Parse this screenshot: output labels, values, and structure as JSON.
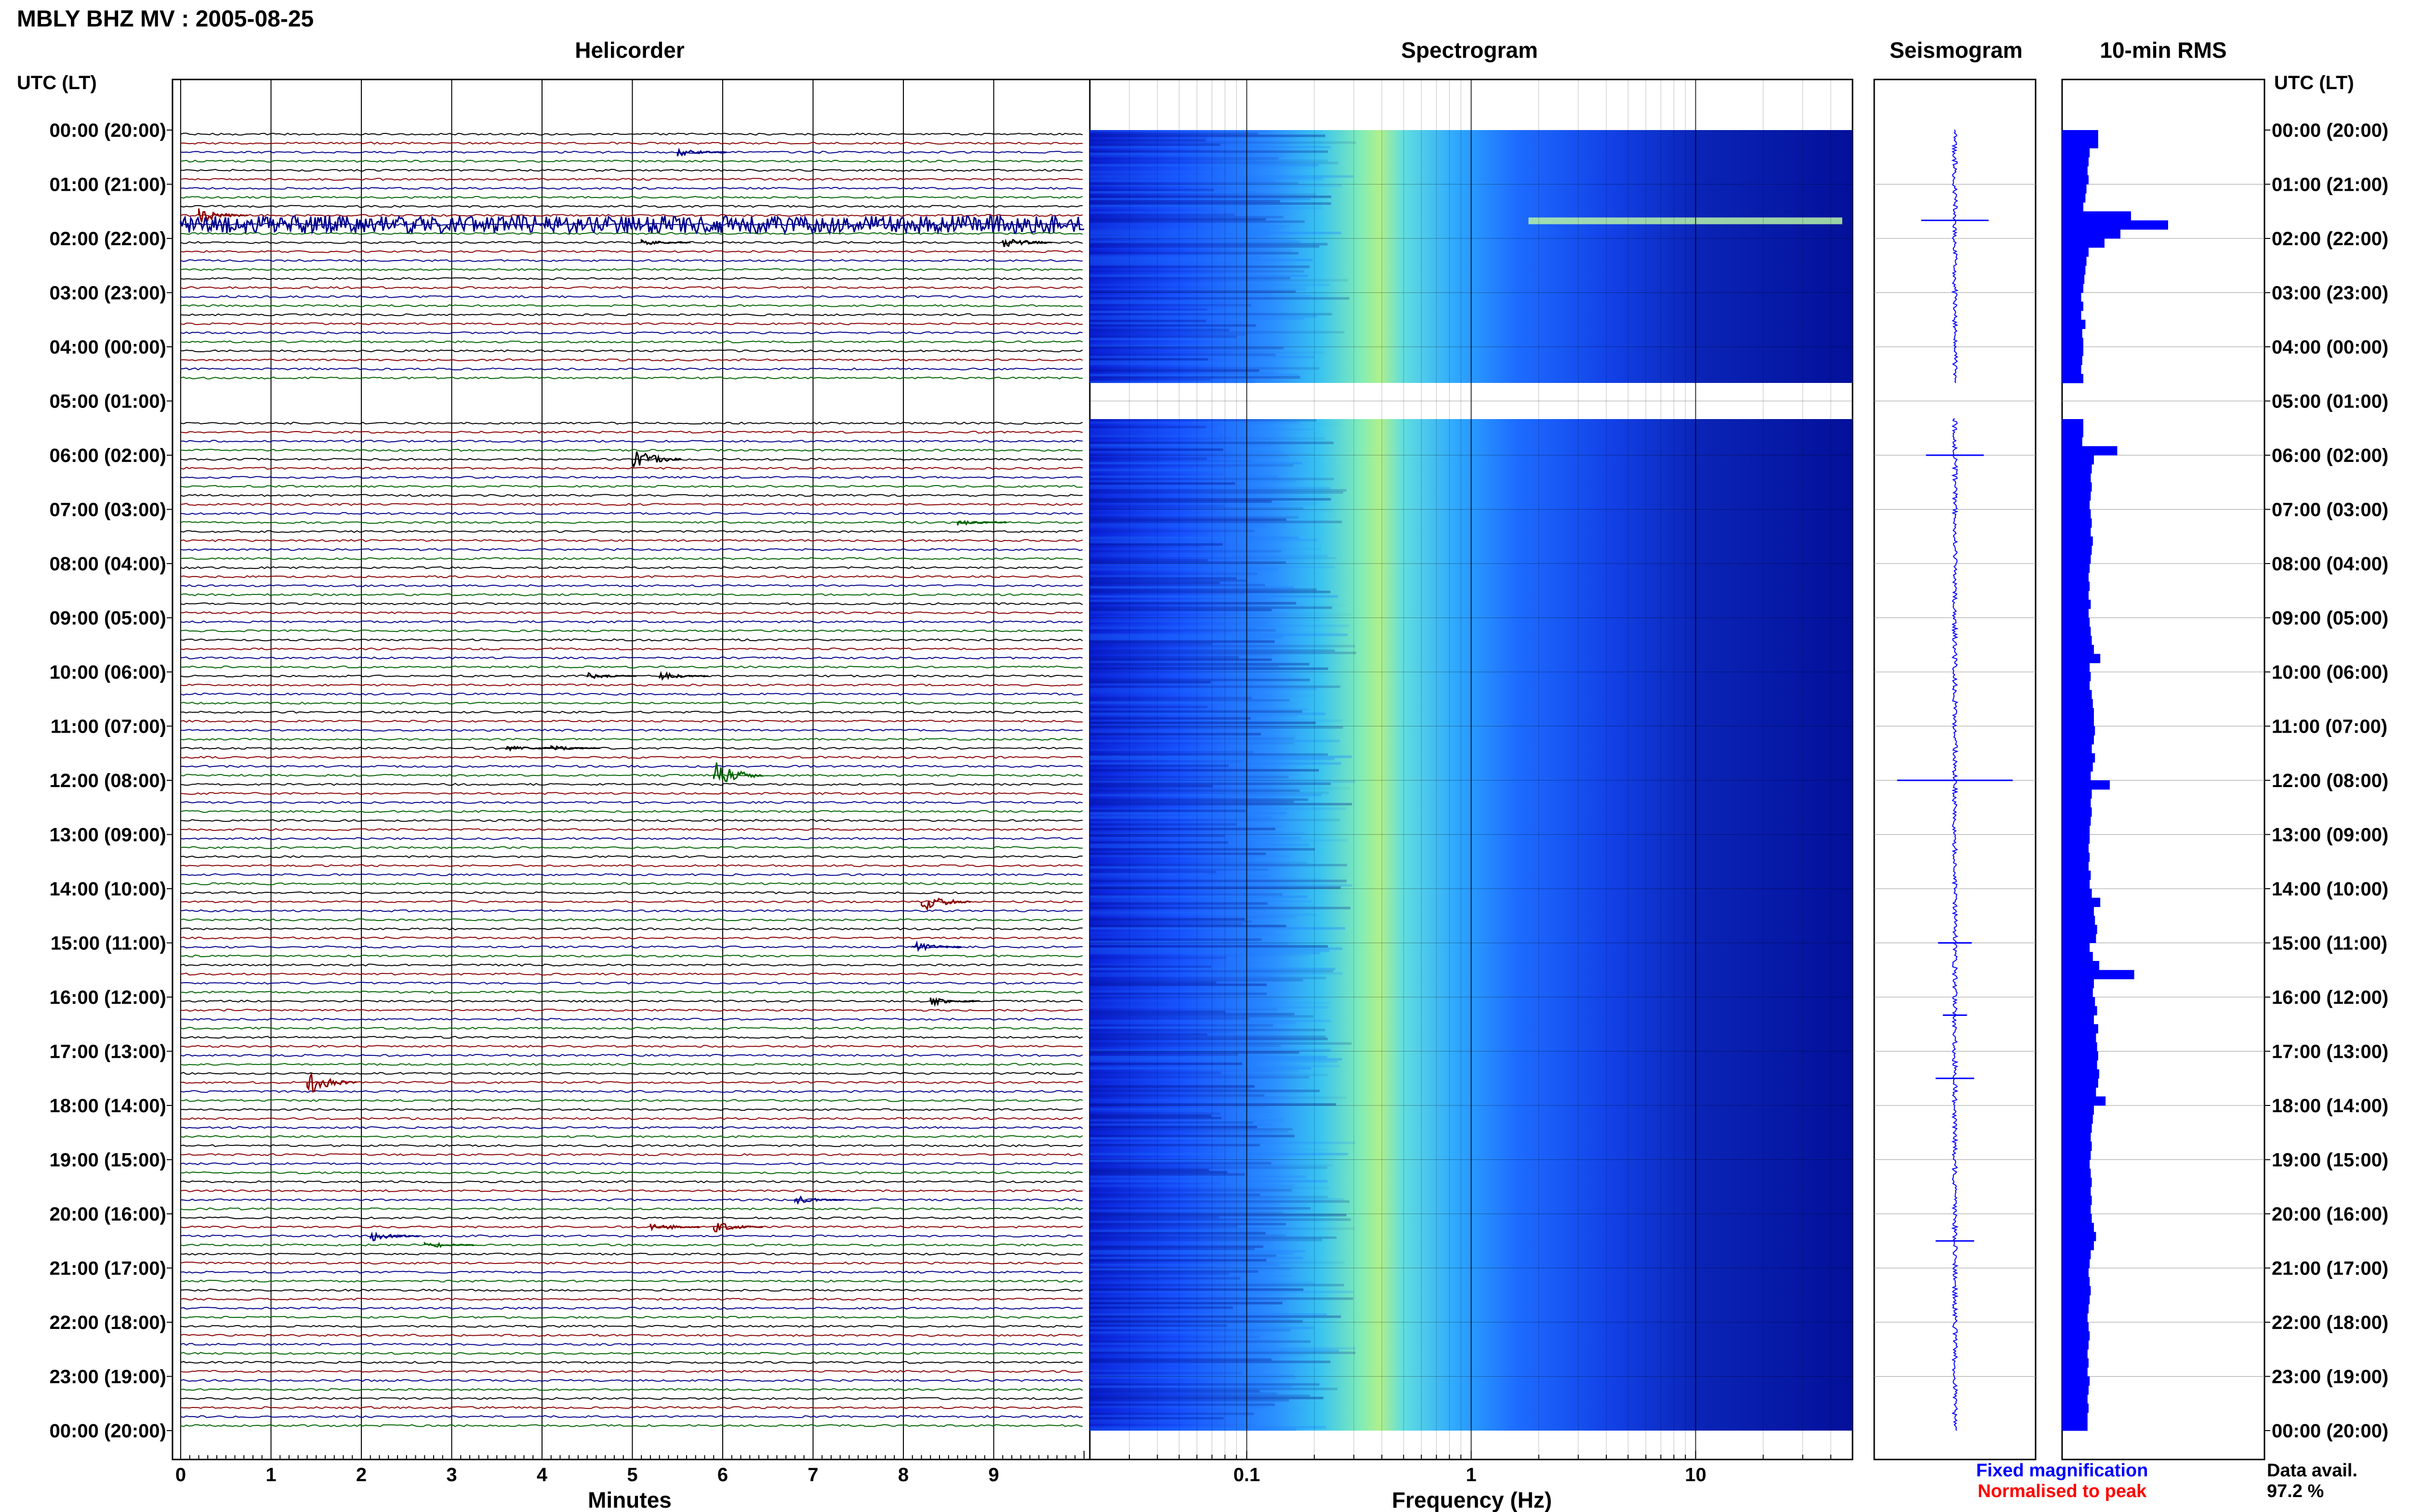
{
  "header": {
    "station_title": "MBLY BHZ MV : 2005-08-25"
  },
  "panels": {
    "helicorder": "Helicorder",
    "spectrogram": "Spectrogram",
    "seismogram": "Seismogram",
    "rms": "10-min RMS"
  },
  "axis_headers": {
    "left": "UTC (LT)",
    "right": "UTC (LT)"
  },
  "time_labels": [
    "00:00 (20:00)",
    "01:00 (21:00)",
    "02:00 (22:00)",
    "03:00 (23:00)",
    "04:00 (00:00)",
    "05:00 (01:00)",
    "06:00 (02:00)",
    "07:00 (03:00)",
    "08:00 (04:00)",
    "09:00 (05:00)",
    "10:00 (06:00)",
    "11:00 (07:00)",
    "12:00 (08:00)",
    "13:00 (09:00)",
    "14:00 (10:00)",
    "15:00 (11:00)",
    "16:00 (12:00)",
    "17:00 (13:00)",
    "18:00 (14:00)",
    "19:00 (15:00)",
    "20:00 (16:00)",
    "21:00 (17:00)",
    "22:00 (18:00)",
    "23:00 (19:00)",
    "00:00 (20:00)"
  ],
  "footer": {
    "fixed_magnification": "Fixed magnification",
    "normalised_to_peak": "Normalised to peak",
    "data_avail_label": "Data avail.",
    "data_avail_value": "97.2 %"
  },
  "colors": {
    "trace_black": "#000000",
    "trace_red": "#8b0000",
    "trace_blue": "#00008b",
    "trace_green": "#006400",
    "rms_bar": "#0000ff",
    "seismogram": "#0000ff",
    "fixed_magnification_text": "#0000ff",
    "normalised_text": "#ff0000"
  },
  "chart_data": [
    {
      "type": "line",
      "title": "Helicorder",
      "xlabel": "Minutes",
      "x_ticks": [
        "0",
        "1",
        "2",
        "3",
        "4",
        "5",
        "6",
        "7",
        "8",
        "9"
      ],
      "xlim": [
        0,
        10
      ],
      "lines_per_hour": 6,
      "trace_color_cycle": [
        "#000000",
        "#8b0000",
        "#00008b",
        "#006400"
      ],
      "data_gap_utc": [
        "04:40",
        "05:20"
      ],
      "events": [
        {
          "time_utc": "00:20",
          "minute": 5.5,
          "amplitude": 1.5
        },
        {
          "time_utc": "01:30",
          "minute": 0.2,
          "amplitude": 3.0
        },
        {
          "time_utc": "01:40",
          "minute": 0,
          "duration_min": 10,
          "amplitude": 3.0
        },
        {
          "time_utc": "02:00",
          "minute": 5.1,
          "amplitude": 1.0
        },
        {
          "time_utc": "02:00",
          "minute": 9.1,
          "amplitude": 2.5
        },
        {
          "time_utc": "06:00",
          "minute": 5.0,
          "amplitude": 5.0
        },
        {
          "time_utc": "07:10",
          "minute": 8.6,
          "amplitude": 1.0
        },
        {
          "time_utc": "10:00",
          "minute": 4.5,
          "amplitude": 1.2
        },
        {
          "time_utc": "10:00",
          "minute": 5.3,
          "amplitude": 1.5
        },
        {
          "time_utc": "11:20",
          "minute": 3.6,
          "amplitude": 1.0
        },
        {
          "time_utc": "11:20",
          "minute": 4.1,
          "amplitude": 1.0
        },
        {
          "time_utc": "11:50",
          "minute": 5.9,
          "amplitude": 6.0
        },
        {
          "time_utc": "14:10",
          "minute": 8.2,
          "amplitude": 4.0
        },
        {
          "time_utc": "15:00",
          "minute": 8.1,
          "amplitude": 2.0
        },
        {
          "time_utc": "16:00",
          "minute": 8.3,
          "amplitude": 1.5
        },
        {
          "time_utc": "17:30",
          "minute": 1.4,
          "amplitude": 4.5
        },
        {
          "time_utc": "19:40",
          "minute": 6.8,
          "amplitude": 1.5
        },
        {
          "time_utc": "20:10",
          "minute": 5.9,
          "amplitude": 2.0
        },
        {
          "time_utc": "20:10",
          "minute": 5.2,
          "amplitude": 2.0
        },
        {
          "time_utc": "20:20",
          "minute": 2.1,
          "amplitude": 2.0
        },
        {
          "time_utc": "20:30",
          "minute": 2.7,
          "amplitude": 1.5
        }
      ]
    },
    {
      "type": "heatmap",
      "title": "Spectrogram",
      "xlabel": "Frequency (Hz)",
      "x_scale": "log",
      "xlim": [
        0.02,
        50
      ],
      "x_ticks": [
        {
          "value": 0.1,
          "label": "0.1"
        },
        {
          "value": 1,
          "label": "1"
        },
        {
          "value": 10,
          "label": "10"
        }
      ],
      "colormap": [
        "#00008b",
        "#0033ff",
        "#2f9bff",
        "#33ccee",
        "#7df0b0",
        "#c8f060"
      ],
      "peak_frequency_hz": 0.3,
      "data_gap_utc": [
        "04:40",
        "05:20"
      ],
      "high_freq_band_events": [
        {
          "time_utc": "01:40",
          "freq_min_hz": 1.8,
          "freq_max_hz": 45
        }
      ]
    },
    {
      "type": "line",
      "title": "Seismogram",
      "spikes_utc": [
        "01:40",
        "06:00",
        "12:00",
        "15:00",
        "16:20",
        "17:30",
        "20:30"
      ],
      "data_gap_utc": [
        "04:40",
        "05:20"
      ]
    },
    {
      "type": "bar",
      "title": "10-min RMS",
      "orientation": "horizontal",
      "bin_minutes": 10,
      "data_gap_utc": [
        "04:40",
        "05:20"
      ],
      "values": [
        0.34,
        0.34,
        0.26,
        0.25,
        0.24,
        0.25,
        0.23,
        0.22,
        0.2,
        0.65,
        1.0,
        0.55,
        0.4,
        0.25,
        0.23,
        0.22,
        0.21,
        0.2,
        0.18,
        0.2,
        0.18,
        0.22,
        0.19,
        0.2,
        0.2,
        0.19,
        0.18,
        0.2,
        null,
        null,
        null,
        null,
        0.2,
        0.2,
        0.19,
        0.52,
        0.3,
        0.28,
        0.27,
        0.28,
        0.27,
        0.26,
        0.27,
        0.28,
        0.27,
        0.29,
        0.28,
        0.27,
        0.26,
        0.25,
        0.26,
        0.25,
        0.27,
        0.25,
        0.26,
        0.27,
        0.28,
        0.3,
        0.36,
        0.26,
        0.27,
        0.26,
        0.28,
        0.29,
        0.3,
        0.3,
        0.31,
        0.3,
        0.28,
        0.31,
        0.29,
        0.27,
        0.45,
        0.28,
        0.27,
        0.28,
        0.27,
        0.26,
        0.26,
        0.25,
        0.26,
        0.25,
        0.27,
        0.26,
        0.28,
        0.36,
        0.3,
        0.31,
        0.33,
        0.32,
        0.26,
        0.29,
        0.35,
        0.68,
        0.3,
        0.29,
        0.31,
        0.33,
        0.3,
        0.34,
        0.32,
        0.33,
        0.34,
        0.33,
        0.35,
        0.34,
        0.32,
        0.41,
        0.3,
        0.29,
        0.28,
        0.27,
        0.28,
        0.27,
        0.26,
        0.27,
        0.28,
        0.27,
        0.28,
        0.27,
        0.28,
        0.3,
        0.32,
        0.3,
        0.27,
        0.26,
        0.25,
        0.26,
        0.27,
        0.26,
        0.25,
        0.24,
        0.25,
        0.26,
        0.25,
        0.24,
        0.25,
        0.24,
        0.26,
        0.25,
        0.24,
        0.25,
        0.24,
        0.24
      ]
    }
  ]
}
